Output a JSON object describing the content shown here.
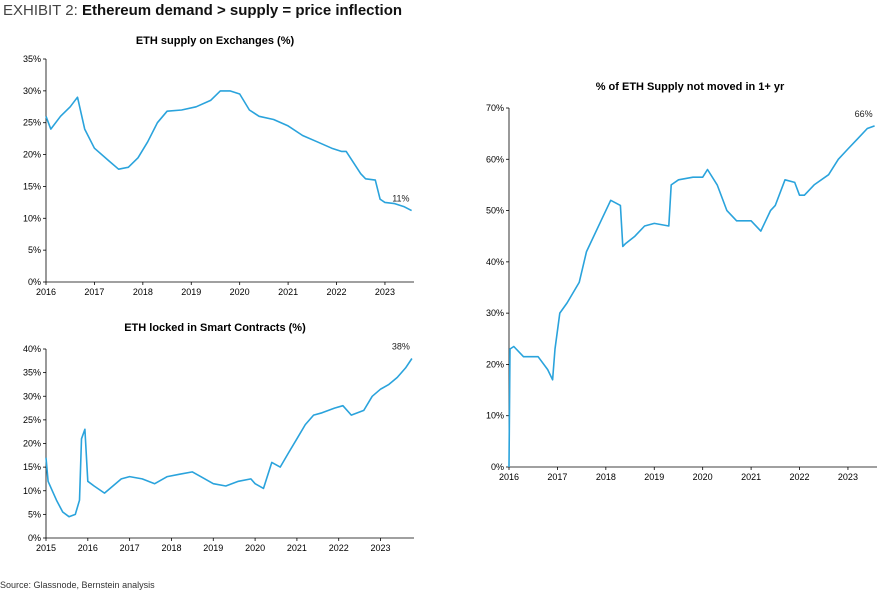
{
  "header": {
    "exhibit_label": "EXHIBIT 2:",
    "title": "Ethereum demand > supply = price inflection"
  },
  "source": "Source: Glassnode, Bernstein analysis",
  "colors": {
    "line": "#2aa3dc",
    "axis": "#000000"
  },
  "chart_data": [
    {
      "id": "supply-exchanges",
      "type": "line",
      "title": "ETH supply on Exchanges (%)",
      "xlabel": "",
      "ylabel": "",
      "xlim": [
        2016,
        2023.6
      ],
      "ylim": [
        0,
        35
      ],
      "y_ticks": [
        0,
        5,
        10,
        15,
        20,
        25,
        30,
        35
      ],
      "y_tick_labels": [
        "0%",
        "5%",
        "10%",
        "15%",
        "20%",
        "25%",
        "30%",
        "35%"
      ],
      "x_ticks": [
        2016,
        2017,
        2018,
        2019,
        2020,
        2021,
        2022,
        2023
      ],
      "x_tick_labels": [
        "2016",
        "2017",
        "2018",
        "2019",
        "2020",
        "2021",
        "2022",
        "2023"
      ],
      "grid": false,
      "series": [
        {
          "name": "ETH supply on Exchanges",
          "x": [
            2016.0,
            2016.1,
            2016.3,
            2016.5,
            2016.65,
            2016.8,
            2017.0,
            2017.3,
            2017.5,
            2017.7,
            2017.9,
            2018.1,
            2018.3,
            2018.5,
            2018.8,
            2019.1,
            2019.4,
            2019.6,
            2019.8,
            2020.0,
            2020.2,
            2020.4,
            2020.7,
            2021.0,
            2021.3,
            2021.6,
            2021.9,
            2022.1,
            2022.2,
            2022.5,
            2022.6,
            2022.8,
            2022.9,
            2023.0,
            2023.2,
            2023.4,
            2023.55
          ],
          "y": [
            26,
            24,
            26,
            27.5,
            29,
            24,
            21,
            19,
            17.7,
            18,
            19.5,
            22,
            25,
            26.8,
            27,
            27.5,
            28.5,
            30,
            30,
            29.5,
            27,
            26,
            25.5,
            24.5,
            23,
            22,
            21,
            20.5,
            20.5,
            17,
            16.2,
            16,
            13,
            12.5,
            12.3,
            11.8,
            11.2
          ]
        }
      ],
      "annotations": [
        {
          "text": "11%",
          "x": 2023.55,
          "y": 11.2
        }
      ]
    },
    {
      "id": "smart-contracts",
      "type": "line",
      "title": "ETH locked in Smart Contracts (%)",
      "xlabel": "",
      "ylabel": "",
      "xlim": [
        2015,
        2023.8
      ],
      "ylim": [
        0,
        40
      ],
      "y_ticks": [
        0,
        5,
        10,
        15,
        20,
        25,
        30,
        35,
        40
      ],
      "y_tick_labels": [
        "0%",
        "5%",
        "10%",
        "15%",
        "20%",
        "25%",
        "30%",
        "35%",
        "40%"
      ],
      "x_ticks": [
        2015,
        2016,
        2017,
        2018,
        2019,
        2020,
        2021,
        2022,
        2023
      ],
      "x_tick_labels": [
        "2015",
        "2016",
        "2017",
        "2018",
        "2019",
        "2020",
        "2021",
        "2022",
        "2023"
      ],
      "grid": false,
      "series": [
        {
          "name": "ETH locked in Smart Contracts",
          "x": [
            2015.0,
            2015.05,
            2015.15,
            2015.25,
            2015.4,
            2015.55,
            2015.7,
            2015.8,
            2015.85,
            2015.93,
            2016.0,
            2016.15,
            2016.4,
            2016.6,
            2016.8,
            2017.0,
            2017.3,
            2017.6,
            2017.9,
            2018.2,
            2018.5,
            2018.7,
            2019.0,
            2019.3,
            2019.6,
            2019.9,
            2020.0,
            2020.2,
            2020.4,
            2020.6,
            2020.8,
            2021.0,
            2021.2,
            2021.4,
            2021.6,
            2021.9,
            2022.1,
            2022.3,
            2022.6,
            2022.8,
            2023.0,
            2023.2,
            2023.4,
            2023.6,
            2023.75
          ],
          "y": [
            17,
            12,
            10,
            8,
            5.5,
            4.5,
            5,
            8,
            21,
            23,
            12,
            11,
            9.5,
            11,
            12.5,
            13,
            12.5,
            11.5,
            13,
            13.5,
            14,
            13,
            11.5,
            11,
            12,
            12.5,
            11.5,
            10.5,
            16,
            15,
            18,
            21,
            24,
            26,
            26.5,
            27.5,
            28,
            26,
            27,
            30,
            31.5,
            32.5,
            34,
            36,
            38
          ]
        }
      ],
      "annotations": [
        {
          "text": "38%",
          "x": 2023.75,
          "y": 38
        }
      ]
    },
    {
      "id": "not-moved",
      "type": "line",
      "title": "% of ETH Supply not moved in 1+ yr",
      "xlabel": "",
      "ylabel": "",
      "xlim": [
        2016,
        2023.6
      ],
      "ylim": [
        0,
        70
      ],
      "y_ticks": [
        0,
        10,
        20,
        30,
        40,
        50,
        60,
        70
      ],
      "y_tick_labels": [
        "0%",
        "10%",
        "20%",
        "30%",
        "40%",
        "50%",
        "60%",
        "70%"
      ],
      "x_ticks": [
        2016,
        2017,
        2018,
        2019,
        2020,
        2021,
        2022,
        2023
      ],
      "x_tick_labels": [
        "2016",
        "2017",
        "2018",
        "2019",
        "2020",
        "2021",
        "2022",
        "2023"
      ],
      "grid": false,
      "series": [
        {
          "name": "% of ETH Supply not moved in 1+ yr",
          "x": [
            2016.0,
            2016.02,
            2016.1,
            2016.3,
            2016.6,
            2016.8,
            2016.9,
            2016.95,
            2017.05,
            2017.2,
            2017.45,
            2017.6,
            2017.9,
            2018.1,
            2018.3,
            2018.35,
            2018.4,
            2018.6,
            2018.8,
            2019.0,
            2019.3,
            2019.35,
            2019.5,
            2019.8,
            2020.0,
            2020.1,
            2020.3,
            2020.5,
            2020.7,
            2021.0,
            2021.2,
            2021.4,
            2021.5,
            2021.7,
            2021.9,
            2022.0,
            2022.1,
            2022.3,
            2022.6,
            2022.8,
            2023.0,
            2023.2,
            2023.4,
            2023.55
          ],
          "y": [
            0,
            23,
            23.5,
            21.5,
            21.5,
            19,
            17,
            23,
            30,
            32,
            36,
            42,
            48,
            52,
            51,
            43,
            43.5,
            45,
            47,
            47.5,
            47,
            55,
            56,
            56.5,
            56.5,
            58,
            55,
            50,
            48,
            48,
            46,
            50,
            51,
            56,
            55.5,
            53,
            53,
            55,
            57,
            60,
            62,
            64,
            66,
            66.5
          ]
        }
      ],
      "annotations": [
        {
          "text": "66%",
          "x": 2023.55,
          "y": 66.5
        }
      ]
    }
  ]
}
